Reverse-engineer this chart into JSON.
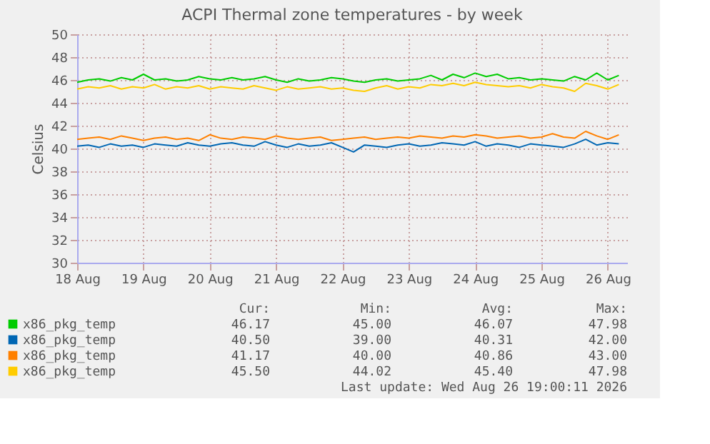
{
  "chart_data": {
    "type": "line",
    "title": "ACPI Thermal zone temperatures - by week",
    "ylabel": "Celsius",
    "x": [
      "2026-08-18T00:00",
      "2026-08-18T04:00",
      "2026-08-18T08:00",
      "2026-08-18T12:00",
      "2026-08-18T16:00",
      "2026-08-18T20:00",
      "2026-08-19T00:00",
      "2026-08-19T04:00",
      "2026-08-19T08:00",
      "2026-08-19T12:00",
      "2026-08-19T16:00",
      "2026-08-19T20:00",
      "2026-08-20T00:00",
      "2026-08-20T04:00",
      "2026-08-20T08:00",
      "2026-08-20T12:00",
      "2026-08-20T16:00",
      "2026-08-20T20:00",
      "2026-08-21T00:00",
      "2026-08-21T04:00",
      "2026-08-21T08:00",
      "2026-08-21T12:00",
      "2026-08-21T16:00",
      "2026-08-21T20:00",
      "2026-08-22T00:00",
      "2026-08-22T04:00",
      "2026-08-22T08:00",
      "2026-08-22T12:00",
      "2026-08-22T16:00",
      "2026-08-22T20:00",
      "2026-08-23T00:00",
      "2026-08-23T04:00",
      "2026-08-23T08:00",
      "2026-08-23T12:00",
      "2026-08-23T16:00",
      "2026-08-23T20:00",
      "2026-08-24T00:00",
      "2026-08-24T04:00",
      "2026-08-24T08:00",
      "2026-08-24T12:00",
      "2026-08-24T16:00",
      "2026-08-24T20:00",
      "2026-08-25T00:00",
      "2026-08-25T04:00",
      "2026-08-25T08:00",
      "2026-08-25T12:00",
      "2026-08-25T16:00",
      "2026-08-25T20:00",
      "2026-08-26T00:00",
      "2026-08-26T04:00"
    ],
    "series": [
      {
        "name": "x86_pkg_temp",
        "color": "#00cc00",
        "values": [
          45.8,
          46.0,
          46.1,
          45.9,
          46.2,
          46.0,
          46.5,
          46.0,
          46.1,
          45.9,
          46.0,
          46.3,
          46.1,
          46.0,
          46.2,
          46.0,
          46.1,
          46.3,
          46.0,
          45.8,
          46.1,
          45.9,
          46.0,
          46.2,
          46.1,
          45.9,
          45.8,
          46.0,
          46.1,
          45.9,
          46.0,
          46.1,
          46.4,
          46.0,
          46.5,
          46.2,
          46.6,
          46.3,
          46.5,
          46.1,
          46.2,
          46.0,
          46.1,
          46.0,
          45.9,
          46.3,
          46.0,
          46.6,
          46.0,
          46.4
        ]
      },
      {
        "name": "x86_pkg_temp",
        "color": "#0066b3",
        "values": [
          40.2,
          40.3,
          40.1,
          40.4,
          40.2,
          40.3,
          40.1,
          40.4,
          40.3,
          40.2,
          40.5,
          40.3,
          40.2,
          40.4,
          40.5,
          40.3,
          40.2,
          40.6,
          40.3,
          40.1,
          40.4,
          40.2,
          40.3,
          40.5,
          40.1,
          39.7,
          40.3,
          40.2,
          40.1,
          40.3,
          40.4,
          40.2,
          40.3,
          40.5,
          40.4,
          40.3,
          40.6,
          40.2,
          40.4,
          40.3,
          40.1,
          40.4,
          40.3,
          40.2,
          40.1,
          40.4,
          40.8,
          40.3,
          40.5,
          40.4
        ]
      },
      {
        "name": "x86_pkg_temp",
        "color": "#ff8000",
        "values": [
          40.8,
          40.9,
          41.0,
          40.8,
          41.1,
          40.9,
          40.7,
          40.9,
          41.0,
          40.8,
          40.9,
          40.7,
          41.2,
          40.9,
          40.8,
          41.0,
          40.9,
          40.8,
          41.1,
          40.9,
          40.8,
          40.9,
          41.0,
          40.7,
          40.8,
          40.9,
          41.0,
          40.8,
          40.9,
          41.0,
          40.9,
          41.1,
          41.0,
          40.9,
          41.1,
          41.0,
          41.2,
          41.1,
          40.9,
          41.0,
          41.1,
          40.9,
          41.0,
          41.3,
          41.0,
          40.9,
          41.5,
          41.1,
          40.8,
          41.2
        ]
      },
      {
        "name": "x86_pkg_temp",
        "color": "#ffcc00",
        "values": [
          45.2,
          45.4,
          45.3,
          45.5,
          45.2,
          45.4,
          45.3,
          45.6,
          45.2,
          45.4,
          45.3,
          45.5,
          45.2,
          45.4,
          45.3,
          45.2,
          45.5,
          45.3,
          45.1,
          45.4,
          45.2,
          45.3,
          45.4,
          45.2,
          45.3,
          45.1,
          45.0,
          45.3,
          45.5,
          45.2,
          45.4,
          45.3,
          45.6,
          45.5,
          45.7,
          45.5,
          45.8,
          45.6,
          45.5,
          45.4,
          45.5,
          45.3,
          45.6,
          45.4,
          45.3,
          45.0,
          45.7,
          45.5,
          45.2,
          45.6
        ]
      }
    ],
    "xlim": [
      "2026-08-18T00:00",
      "2026-08-26T07:00"
    ],
    "xticks": [
      {
        "value": "2026-08-18T00:00",
        "label": "18 Aug"
      },
      {
        "value": "2026-08-19T00:00",
        "label": "19 Aug"
      },
      {
        "value": "2026-08-20T00:00",
        "label": "20 Aug"
      },
      {
        "value": "2026-08-21T00:00",
        "label": "21 Aug"
      },
      {
        "value": "2026-08-22T00:00",
        "label": "22 Aug"
      },
      {
        "value": "2026-08-23T00:00",
        "label": "23 Aug"
      },
      {
        "value": "2026-08-24T00:00",
        "label": "24 Aug"
      },
      {
        "value": "2026-08-25T00:00",
        "label": "25 Aug"
      },
      {
        "value": "2026-08-26T00:00",
        "label": "26 Aug"
      }
    ],
    "ylim": [
      30,
      50
    ],
    "yticks": [
      30,
      32,
      34,
      36,
      38,
      40,
      42,
      44,
      46,
      48,
      50
    ],
    "grid": true,
    "legend": "bottom",
    "line_style": "solid",
    "annotations": [
      "Cur:",
      "Min:",
      "Avg:",
      "Max:",
      "46.17",
      "45.00",
      "46.07",
      "47.98",
      "40.50",
      "39.00",
      "40.31",
      "42.00",
      "41.17",
      "40.00",
      "40.86",
      "43.00",
      "45.50",
      "44.02",
      "45.40",
      "47.98",
      "Last update: Wed Aug 26 19:00:11 2026"
    ]
  }
}
